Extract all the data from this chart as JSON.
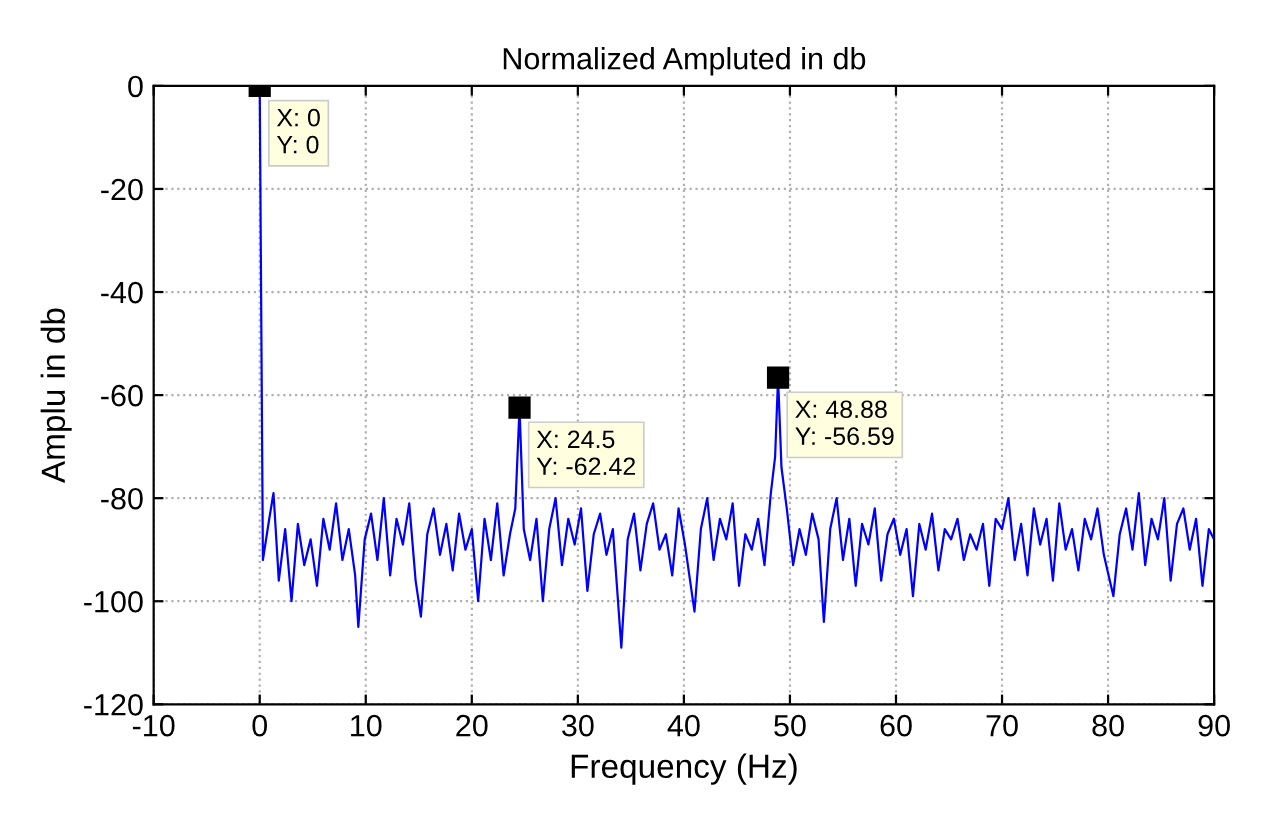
{
  "chart_data": {
    "type": "line",
    "title": "Normalized Ampluted in db",
    "xlabel": "Frequency (Hz)",
    "ylabel": "Amplu in db",
    "xlim": [
      -10,
      90
    ],
    "xticks": [
      -10,
      0,
      10,
      20,
      30,
      40,
      50,
      60,
      70,
      80,
      90
    ],
    "ylim": [
      -120,
      0
    ],
    "yticks": [
      -120,
      -100,
      -80,
      -60,
      -40,
      -20,
      0
    ],
    "grid": true,
    "legend": false,
    "marker": "none",
    "line_style": "solid",
    "annotations": [
      {
        "text": "X: 0\nY: 0",
        "x": 0,
        "y": 0
      },
      {
        "text": "X: 24.5\nY: -62.42",
        "x": 24.5,
        "y": -62.42
      },
      {
        "text": "X: 48.88\nY: -56.59",
        "x": 48.88,
        "y": -56.59
      }
    ],
    "series": [
      {
        "color": "#0000ff",
        "x": [
          0,
          0.3,
          0.9,
          1.3,
          1.8,
          2.4,
          3.0,
          3.6,
          4.2,
          4.8,
          5.4,
          6.0,
          6.6,
          7.2,
          7.8,
          8.4,
          9.0,
          9.3,
          9.9,
          10.5,
          11.1,
          11.7,
          12.3,
          12.9,
          13.5,
          14.1,
          14.7,
          15.2,
          15.8,
          16.4,
          17.0,
          17.6,
          18.2,
          18.8,
          19.4,
          20.0,
          20.6,
          21.2,
          21.8,
          22.4,
          23.0,
          23.6,
          24.1,
          24.5,
          24.9,
          25.5,
          26.1,
          26.7,
          27.3,
          27.9,
          28.5,
          29.1,
          29.7,
          30.3,
          30.9,
          31.5,
          32.1,
          32.7,
          33.3,
          34.1,
          34.7,
          35.3,
          35.9,
          36.5,
          37.1,
          37.7,
          38.3,
          38.9,
          39.5,
          40.1,
          41.0,
          41.6,
          42.2,
          42.8,
          43.4,
          44.0,
          44.6,
          45.2,
          45.8,
          46.4,
          47.0,
          47.6,
          48.2,
          48.6,
          48.88,
          49.2,
          49.7,
          50.3,
          50.9,
          51.5,
          52.1,
          52.7,
          53.2,
          53.8,
          54.4,
          55.0,
          55.6,
          56.2,
          56.8,
          57.4,
          58.0,
          58.6,
          59.2,
          59.8,
          60.4,
          61.0,
          61.6,
          62.2,
          62.8,
          63.4,
          64.0,
          64.6,
          65.2,
          65.8,
          66.4,
          67.0,
          67.6,
          68.2,
          68.8,
          69.4,
          70.0,
          70.6,
          71.2,
          71.8,
          72.4,
          73.0,
          73.6,
          74.2,
          74.8,
          75.4,
          76.0,
          76.6,
          77.2,
          77.8,
          78.4,
          79.0,
          79.6,
          80.5,
          81.1,
          81.7,
          82.3,
          82.9,
          83.5,
          84.1,
          84.7,
          85.3,
          85.9,
          86.5,
          87.1,
          87.7,
          88.3,
          88.9,
          89.5,
          90
        ],
        "values": [
          0,
          -92,
          -84,
          -79,
          -96,
          -86,
          -100,
          -85,
          -93,
          -88,
          -97,
          -84,
          -90,
          -81,
          -92,
          -86,
          -95,
          -105,
          -88,
          -83,
          -92,
          -80,
          -95,
          -84,
          -89,
          -81,
          -96,
          -103,
          -87,
          -82,
          -91,
          -85,
          -94,
          -83,
          -90,
          -86,
          -100,
          -84,
          -92,
          -81,
          -95,
          -87,
          -82,
          -62.42,
          -86,
          -92,
          -84,
          -100,
          -86,
          -80,
          -93,
          -84,
          -89,
          -82,
          -98,
          -87,
          -83,
          -91,
          -86,
          -109,
          -88,
          -83,
          -94,
          -85,
          -81,
          -90,
          -87,
          -95,
          -82,
          -89,
          -102,
          -86,
          -80,
          -92,
          -84,
          -88,
          -81,
          -97,
          -87,
          -90,
          -84,
          -93,
          -79,
          -72,
          -56.59,
          -74,
          -82,
          -93,
          -86,
          -91,
          -83,
          -88,
          -104,
          -86,
          -80,
          -92,
          -84,
          -97,
          -85,
          -89,
          -82,
          -96,
          -87,
          -84,
          -91,
          -86,
          -99,
          -85,
          -90,
          -83,
          -94,
          -86,
          -88,
          -84,
          -92,
          -87,
          -90,
          -85,
          -97,
          -84,
          -86,
          -80,
          -92,
          -85,
          -95,
          -82,
          -89,
          -84,
          -96,
          -81,
          -90,
          -86,
          -94,
          -84,
          -88,
          -82,
          -91,
          -99,
          -87,
          -82,
          -90,
          -79,
          -93,
          -84,
          -88,
          -80,
          -96,
          -85,
          -82,
          -90,
          -84,
          -97,
          -86,
          -88
        ]
      }
    ]
  }
}
